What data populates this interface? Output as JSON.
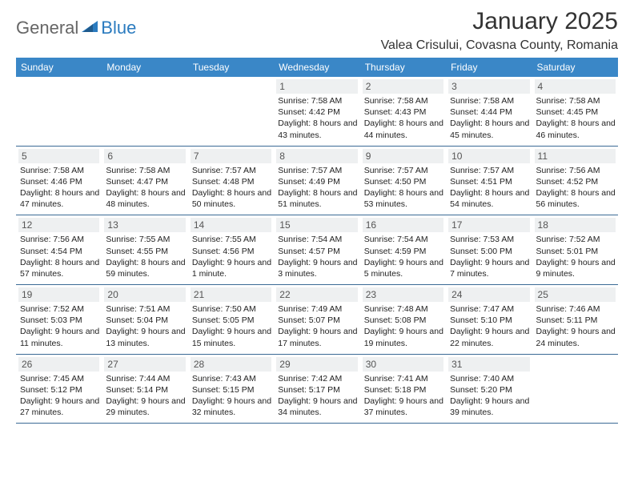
{
  "logo": {
    "textA": "General",
    "textB": "Blue"
  },
  "title": "January 2025",
  "location": "Valea Crisului, Covasna County, Romania",
  "colors": {
    "headerBg": "#3a87c7",
    "headerText": "#ffffff",
    "rowBorder": "#3a6a95",
    "dayNumBg": "#eef0f1",
    "dayNumText": "#555555",
    "bodyText": "#222222",
    "logoBlue": "#2b7bbf",
    "logoGray": "#666666"
  },
  "weekdays": [
    "Sunday",
    "Monday",
    "Tuesday",
    "Wednesday",
    "Thursday",
    "Friday",
    "Saturday"
  ],
  "weeks": [
    [
      null,
      null,
      null,
      {
        "n": "1",
        "sr": "7:58 AM",
        "ss": "4:42 PM",
        "dl": "8 hours and 43 minutes."
      },
      {
        "n": "2",
        "sr": "7:58 AM",
        "ss": "4:43 PM",
        "dl": "8 hours and 44 minutes."
      },
      {
        "n": "3",
        "sr": "7:58 AM",
        "ss": "4:44 PM",
        "dl": "8 hours and 45 minutes."
      },
      {
        "n": "4",
        "sr": "7:58 AM",
        "ss": "4:45 PM",
        "dl": "8 hours and 46 minutes."
      }
    ],
    [
      {
        "n": "5",
        "sr": "7:58 AM",
        "ss": "4:46 PM",
        "dl": "8 hours and 47 minutes."
      },
      {
        "n": "6",
        "sr": "7:58 AM",
        "ss": "4:47 PM",
        "dl": "8 hours and 48 minutes."
      },
      {
        "n": "7",
        "sr": "7:57 AM",
        "ss": "4:48 PM",
        "dl": "8 hours and 50 minutes."
      },
      {
        "n": "8",
        "sr": "7:57 AM",
        "ss": "4:49 PM",
        "dl": "8 hours and 51 minutes."
      },
      {
        "n": "9",
        "sr": "7:57 AM",
        "ss": "4:50 PM",
        "dl": "8 hours and 53 minutes."
      },
      {
        "n": "10",
        "sr": "7:57 AM",
        "ss": "4:51 PM",
        "dl": "8 hours and 54 minutes."
      },
      {
        "n": "11",
        "sr": "7:56 AM",
        "ss": "4:52 PM",
        "dl": "8 hours and 56 minutes."
      }
    ],
    [
      {
        "n": "12",
        "sr": "7:56 AM",
        "ss": "4:54 PM",
        "dl": "8 hours and 57 minutes."
      },
      {
        "n": "13",
        "sr": "7:55 AM",
        "ss": "4:55 PM",
        "dl": "8 hours and 59 minutes."
      },
      {
        "n": "14",
        "sr": "7:55 AM",
        "ss": "4:56 PM",
        "dl": "9 hours and 1 minute."
      },
      {
        "n": "15",
        "sr": "7:54 AM",
        "ss": "4:57 PM",
        "dl": "9 hours and 3 minutes."
      },
      {
        "n": "16",
        "sr": "7:54 AM",
        "ss": "4:59 PM",
        "dl": "9 hours and 5 minutes."
      },
      {
        "n": "17",
        "sr": "7:53 AM",
        "ss": "5:00 PM",
        "dl": "9 hours and 7 minutes."
      },
      {
        "n": "18",
        "sr": "7:52 AM",
        "ss": "5:01 PM",
        "dl": "9 hours and 9 minutes."
      }
    ],
    [
      {
        "n": "19",
        "sr": "7:52 AM",
        "ss": "5:03 PM",
        "dl": "9 hours and 11 minutes."
      },
      {
        "n": "20",
        "sr": "7:51 AM",
        "ss": "5:04 PM",
        "dl": "9 hours and 13 minutes."
      },
      {
        "n": "21",
        "sr": "7:50 AM",
        "ss": "5:05 PM",
        "dl": "9 hours and 15 minutes."
      },
      {
        "n": "22",
        "sr": "7:49 AM",
        "ss": "5:07 PM",
        "dl": "9 hours and 17 minutes."
      },
      {
        "n": "23",
        "sr": "7:48 AM",
        "ss": "5:08 PM",
        "dl": "9 hours and 19 minutes."
      },
      {
        "n": "24",
        "sr": "7:47 AM",
        "ss": "5:10 PM",
        "dl": "9 hours and 22 minutes."
      },
      {
        "n": "25",
        "sr": "7:46 AM",
        "ss": "5:11 PM",
        "dl": "9 hours and 24 minutes."
      }
    ],
    [
      {
        "n": "26",
        "sr": "7:45 AM",
        "ss": "5:12 PM",
        "dl": "9 hours and 27 minutes."
      },
      {
        "n": "27",
        "sr": "7:44 AM",
        "ss": "5:14 PM",
        "dl": "9 hours and 29 minutes."
      },
      {
        "n": "28",
        "sr": "7:43 AM",
        "ss": "5:15 PM",
        "dl": "9 hours and 32 minutes."
      },
      {
        "n": "29",
        "sr": "7:42 AM",
        "ss": "5:17 PM",
        "dl": "9 hours and 34 minutes."
      },
      {
        "n": "30",
        "sr": "7:41 AM",
        "ss": "5:18 PM",
        "dl": "9 hours and 37 minutes."
      },
      {
        "n": "31",
        "sr": "7:40 AM",
        "ss": "5:20 PM",
        "dl": "9 hours and 39 minutes."
      },
      null
    ]
  ],
  "labels": {
    "sunrise": "Sunrise:",
    "sunset": "Sunset:",
    "daylight": "Daylight:"
  }
}
